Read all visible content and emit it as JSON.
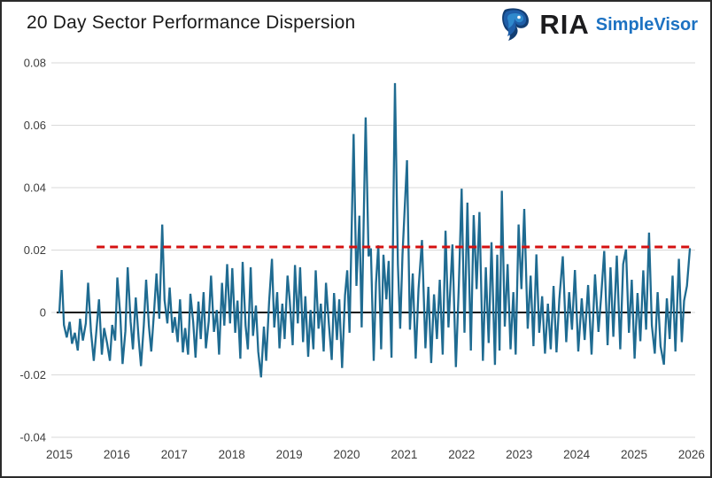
{
  "header": {
    "title": "20 Day Sector Performance Dispersion",
    "logo": {
      "icon": "eagle-icon",
      "brand": "RIA",
      "product": "SimpleVisor",
      "brand_color": "#1c1c1e",
      "product_color": "#1d72c2"
    }
  },
  "chart_data": {
    "type": "line",
    "title": "20 Day Sector Performance Dispersion",
    "xlabel": "",
    "ylabel": "",
    "grid": true,
    "legend_position": "none",
    "xlim": [
      2015,
      2026.1
    ],
    "ylim": [
      -0.045,
      0.0875
    ],
    "x_ticks": [
      "2015",
      "2016",
      "2017",
      "2018",
      "2019",
      "2020",
      "2021",
      "2022",
      "2023",
      "2024",
      "2025",
      "2026"
    ],
    "y_ticks": [
      {
        "v": 0.08,
        "label": "0.08"
      },
      {
        "v": 0.06,
        "label": "0.06"
      },
      {
        "v": 0.04,
        "label": "0.04"
      },
      {
        "v": 0.02,
        "label": "0.02"
      },
      {
        "v": 0,
        "label": "0"
      },
      {
        "v": -0.02,
        "label": "-0.02"
      },
      {
        "v": -0.04,
        "label": "-0.04"
      }
    ],
    "grid_color": "#d9d9d9",
    "reference_lines": {
      "zero_line": {
        "value": 0,
        "color": "#0d0d0d",
        "style": "solid"
      },
      "threshold": {
        "value": 0.021,
        "color": "#d41111",
        "style": "dashed",
        "x_start": 2015.65,
        "x_end": 2025.99
      }
    },
    "series": [
      {
        "name": "20-day sector performance dispersion",
        "color": "#1f6b91",
        "points": [
          [
            2015.0,
            0.0
          ],
          [
            2015.04,
            0.0136
          ],
          [
            2015.08,
            -0.004
          ],
          [
            2015.13,
            -0.008
          ],
          [
            2015.18,
            -0.003
          ],
          [
            2015.22,
            -0.01
          ],
          [
            2015.27,
            -0.0065
          ],
          [
            2015.32,
            -0.0122
          ],
          [
            2015.36,
            -0.002
          ],
          [
            2015.41,
            -0.009
          ],
          [
            2015.46,
            -0.0035
          ],
          [
            2015.5,
            0.0095
          ],
          [
            2015.55,
            -0.006
          ],
          [
            2015.6,
            -0.0155
          ],
          [
            2015.64,
            -0.007
          ],
          [
            2015.69,
            0.0042
          ],
          [
            2015.74,
            -0.0135
          ],
          [
            2015.78,
            -0.005
          ],
          [
            2015.83,
            -0.0098
          ],
          [
            2015.88,
            -0.0155
          ],
          [
            2015.92,
            -0.004
          ],
          [
            2015.97,
            -0.009
          ],
          [
            2016.01,
            0.0112
          ],
          [
            2016.06,
            -0.0008
          ],
          [
            2016.1,
            -0.0165
          ],
          [
            2016.15,
            -0.006
          ],
          [
            2016.19,
            0.0145
          ],
          [
            2016.24,
            -0.003
          ],
          [
            2016.28,
            -0.0118
          ],
          [
            2016.33,
            0.0048
          ],
          [
            2016.38,
            -0.0085
          ],
          [
            2016.42,
            -0.0172
          ],
          [
            2016.47,
            -0.004
          ],
          [
            2016.51,
            0.0105
          ],
          [
            2016.56,
            -0.0045
          ],
          [
            2016.6,
            -0.0125
          ],
          [
            2016.65,
            0.0008
          ],
          [
            2016.69,
            0.0125
          ],
          [
            2016.74,
            -0.002
          ],
          [
            2016.79,
            0.0282
          ],
          [
            2016.83,
            0.004
          ],
          [
            2016.88,
            -0.0035
          ],
          [
            2016.92,
            0.008
          ],
          [
            2016.97,
            -0.0065
          ],
          [
            2017.01,
            -0.0015
          ],
          [
            2017.06,
            -0.0095
          ],
          [
            2017.1,
            0.0042
          ],
          [
            2017.15,
            -0.0128
          ],
          [
            2017.19,
            -0.005
          ],
          [
            2017.24,
            -0.0135
          ],
          [
            2017.28,
            0.006
          ],
          [
            2017.33,
            -0.0032
          ],
          [
            2017.37,
            -0.0145
          ],
          [
            2017.42,
            0.0035
          ],
          [
            2017.46,
            -0.0085
          ],
          [
            2017.51,
            0.0065
          ],
          [
            2017.55,
            -0.0115
          ],
          [
            2017.6,
            -0.0028
          ],
          [
            2017.64,
            0.0118
          ],
          [
            2017.69,
            -0.0062
          ],
          [
            2017.74,
            0.0008
          ],
          [
            2017.78,
            -0.0135
          ],
          [
            2017.83,
            0.0095
          ],
          [
            2017.87,
            -0.0042
          ],
          [
            2017.92,
            0.0155
          ],
          [
            2017.97,
            -0.0035
          ],
          [
            2018.01,
            0.0142
          ],
          [
            2018.06,
            -0.0065
          ],
          [
            2018.1,
            0.0038
          ],
          [
            2018.15,
            -0.0148
          ],
          [
            2018.19,
            0.0162
          ],
          [
            2018.24,
            -0.0042
          ],
          [
            2018.28,
            -0.0118
          ],
          [
            2018.33,
            0.0145
          ],
          [
            2018.37,
            -0.0075
          ],
          [
            2018.42,
            0.0022
          ],
          [
            2018.46,
            -0.0125
          ],
          [
            2018.51,
            -0.0208
          ],
          [
            2018.56,
            -0.0045
          ],
          [
            2018.6,
            -0.0155
          ],
          [
            2018.65,
            0.0035
          ],
          [
            2018.7,
            0.0172
          ],
          [
            2018.74,
            -0.0048
          ],
          [
            2018.79,
            0.0065
          ],
          [
            2018.83,
            -0.0115
          ],
          [
            2018.88,
            0.0028
          ],
          [
            2018.92,
            -0.0085
          ],
          [
            2018.97,
            0.0118
          ],
          [
            2019.01,
            0.0038
          ],
          [
            2019.06,
            -0.0105
          ],
          [
            2019.1,
            0.0152
          ],
          [
            2019.15,
            -0.0035
          ],
          [
            2019.19,
            0.0145
          ],
          [
            2019.24,
            -0.0095
          ],
          [
            2019.28,
            0.0052
          ],
          [
            2019.33,
            -0.0142
          ],
          [
            2019.37,
            0.0008
          ],
          [
            2019.42,
            -0.0118
          ],
          [
            2019.46,
            0.0135
          ],
          [
            2019.51,
            -0.0052
          ],
          [
            2019.55,
            0.0028
          ],
          [
            2019.6,
            -0.0125
          ],
          [
            2019.64,
            0.0095
          ],
          [
            2019.69,
            -0.0038
          ],
          [
            2019.74,
            -0.0152
          ],
          [
            2019.78,
            0.0062
          ],
          [
            2019.83,
            -0.0088
          ],
          [
            2019.87,
            0.0042
          ],
          [
            2019.92,
            -0.0178
          ],
          [
            2019.97,
            0.0055
          ],
          [
            2020.01,
            0.0135
          ],
          [
            2020.05,
            -0.0065
          ],
          [
            2020.12,
            0.0572
          ],
          [
            2020.17,
            0.0085
          ],
          [
            2020.22,
            0.031
          ],
          [
            2020.26,
            -0.0048
          ],
          [
            2020.33,
            0.0625
          ],
          [
            2020.38,
            0.018
          ],
          [
            2020.42,
            0.0205
          ],
          [
            2020.47,
            -0.0155
          ],
          [
            2020.51,
            0.0095
          ],
          [
            2020.55,
            0.0215
          ],
          [
            2020.6,
            -0.0118
          ],
          [
            2020.64,
            0.0185
          ],
          [
            2020.69,
            0.0042
          ],
          [
            2020.73,
            0.0165
          ],
          [
            2020.78,
            -0.0145
          ],
          [
            2020.84,
            0.0735
          ],
          [
            2020.89,
            0.0155
          ],
          [
            2020.93,
            -0.0052
          ],
          [
            2020.97,
            0.0185
          ],
          [
            2021.05,
            0.0488
          ],
          [
            2021.1,
            -0.0055
          ],
          [
            2021.15,
            0.0125
          ],
          [
            2021.2,
            -0.0148
          ],
          [
            2021.25,
            0.0075
          ],
          [
            2021.31,
            0.0232
          ],
          [
            2021.37,
            -0.0115
          ],
          [
            2021.42,
            0.0082
          ],
          [
            2021.47,
            -0.0162
          ],
          [
            2021.52,
            0.0058
          ],
          [
            2021.57,
            -0.0085
          ],
          [
            2021.62,
            0.0105
          ],
          [
            2021.67,
            -0.0135
          ],
          [
            2021.72,
            0.0262
          ],
          [
            2021.77,
            -0.0048
          ],
          [
            2021.84,
            0.0218
          ],
          [
            2021.9,
            -0.0175
          ],
          [
            2021.95,
            0.0085
          ],
          [
            2022.0,
            0.0397
          ],
          [
            2022.05,
            -0.0065
          ],
          [
            2022.1,
            0.0352
          ],
          [
            2022.16,
            -0.0122
          ],
          [
            2022.21,
            0.0312
          ],
          [
            2022.26,
            0.0075
          ],
          [
            2022.31,
            0.0322
          ],
          [
            2022.37,
            -0.0155
          ],
          [
            2022.42,
            0.0145
          ],
          [
            2022.47,
            -0.0098
          ],
          [
            2022.52,
            0.0225
          ],
          [
            2022.58,
            -0.0168
          ],
          [
            2022.62,
            0.0185
          ],
          [
            2022.66,
            -0.0122
          ],
          [
            2022.7,
            0.039
          ],
          [
            2022.75,
            -0.0045
          ],
          [
            2022.8,
            0.0155
          ],
          [
            2022.85,
            -0.0118
          ],
          [
            2022.9,
            0.0065
          ],
          [
            2022.94,
            -0.0135
          ],
          [
            2022.99,
            0.0282
          ],
          [
            2023.04,
            0.0075
          ],
          [
            2023.09,
            0.0332
          ],
          [
            2023.15,
            -0.0052
          ],
          [
            2023.2,
            0.0118
          ],
          [
            2023.25,
            -0.0108
          ],
          [
            2023.3,
            0.0186
          ],
          [
            2023.35,
            -0.0065
          ],
          [
            2023.4,
            0.0052
          ],
          [
            2023.45,
            -0.0132
          ],
          [
            2023.5,
            0.0028
          ],
          [
            2023.55,
            -0.0118
          ],
          [
            2023.6,
            0.0085
          ],
          [
            2023.65,
            -0.0128
          ],
          [
            2023.7,
            0.0042
          ],
          [
            2023.76,
            0.018
          ],
          [
            2023.82,
            -0.0095
          ],
          [
            2023.87,
            0.0065
          ],
          [
            2023.92,
            -0.0055
          ],
          [
            2023.97,
            0.0136
          ],
          [
            2024.03,
            -0.0125
          ],
          [
            2024.09,
            0.0045
          ],
          [
            2024.14,
            -0.0088
          ],
          [
            2024.2,
            0.0088
          ],
          [
            2024.26,
            -0.0135
          ],
          [
            2024.32,
            0.0122
          ],
          [
            2024.38,
            -0.0062
          ],
          [
            2024.43,
            0.0058
          ],
          [
            2024.48,
            0.0197
          ],
          [
            2024.54,
            -0.0105
          ],
          [
            2024.59,
            0.0145
          ],
          [
            2024.64,
            -0.0078
          ],
          [
            2024.7,
            0.0182
          ],
          [
            2024.76,
            -0.0118
          ],
          [
            2024.81,
            0.0155
          ],
          [
            2024.86,
            0.0202
          ],
          [
            2024.91,
            -0.0065
          ],
          [
            2024.96,
            0.0105
          ],
          [
            2025.01,
            -0.0148
          ],
          [
            2025.06,
            0.0062
          ],
          [
            2025.11,
            -0.0092
          ],
          [
            2025.16,
            0.0135
          ],
          [
            2025.21,
            -0.0055
          ],
          [
            2025.26,
            0.0256
          ],
          [
            2025.31,
            -0.0042
          ],
          [
            2025.36,
            -0.0132
          ],
          [
            2025.41,
            0.0065
          ],
          [
            2025.46,
            -0.0108
          ],
          [
            2025.52,
            -0.0167
          ],
          [
            2025.57,
            0.0045
          ],
          [
            2025.62,
            -0.0085
          ],
          [
            2025.67,
            0.0118
          ],
          [
            2025.72,
            -0.0125
          ],
          [
            2025.78,
            0.0172
          ],
          [
            2025.83,
            -0.0095
          ],
          [
            2025.87,
            0.0038
          ],
          [
            2025.92,
            0.0085
          ],
          [
            2025.97,
            0.0203
          ]
        ]
      }
    ]
  }
}
